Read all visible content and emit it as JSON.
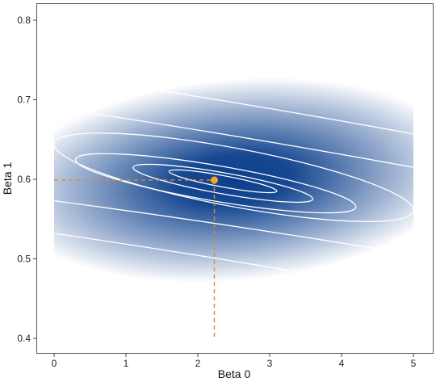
{
  "chart_data": {
    "type": "heatmap",
    "title": "",
    "xlabel": "Beta 0",
    "ylabel": "Beta 1",
    "xlim": [
      0,
      5
    ],
    "ylim": [
      0.4,
      0.8
    ],
    "x_ticks": [
      0,
      1,
      2,
      3,
      4,
      5
    ],
    "y_ticks": [
      0.4,
      0.5,
      0.6,
      0.7,
      0.8
    ],
    "x_tick_labels": [
      "0",
      "1",
      "2",
      "3",
      "4",
      "5"
    ],
    "y_tick_labels": [
      "0.4",
      "0.5",
      "0.6",
      "0.7",
      "0.8"
    ],
    "grid": false,
    "legend": "none",
    "colors": {
      "fill_low": "#ffffff",
      "fill_high": "#0b3e8c",
      "contour": "#ffffff",
      "optimum_marker": "#f5a623",
      "guide_line": "#e08a2c",
      "frame": "#555555"
    },
    "contour_lines": [
      {
        "level": 1,
        "points": [
          [
            1.6,
            0.61
          ],
          [
            3.1,
            0.585
          ]
        ]
      },
      {
        "level": 2,
        "points": [
          [
            1.1,
            0.615
          ],
          [
            3.6,
            0.575
          ]
        ]
      },
      {
        "level": 3,
        "points": [
          [
            0.3,
            0.625
          ],
          [
            4.2,
            0.565
          ]
        ]
      },
      {
        "level": 4,
        "points": [
          [
            0.0,
            0.645
          ],
          [
            5.0,
            0.56
          ]
        ]
      },
      {
        "level": 5,
        "points": [
          [
            0.0,
            0.69
          ],
          [
            5.0,
            0.615
          ]
        ]
      },
      {
        "level": 6,
        "points": [
          [
            0.0,
            0.732
          ],
          [
            5.0,
            0.657
          ]
        ]
      },
      {
        "level": 7,
        "points": [
          [
            0.0,
            0.573
          ],
          [
            5.0,
            0.505
          ]
        ]
      },
      {
        "level": 8,
        "points": [
          [
            0.0,
            0.532
          ],
          [
            5.0,
            0.458
          ]
        ]
      }
    ],
    "optimum": {
      "x": 2.23,
      "y": 0.599
    }
  }
}
